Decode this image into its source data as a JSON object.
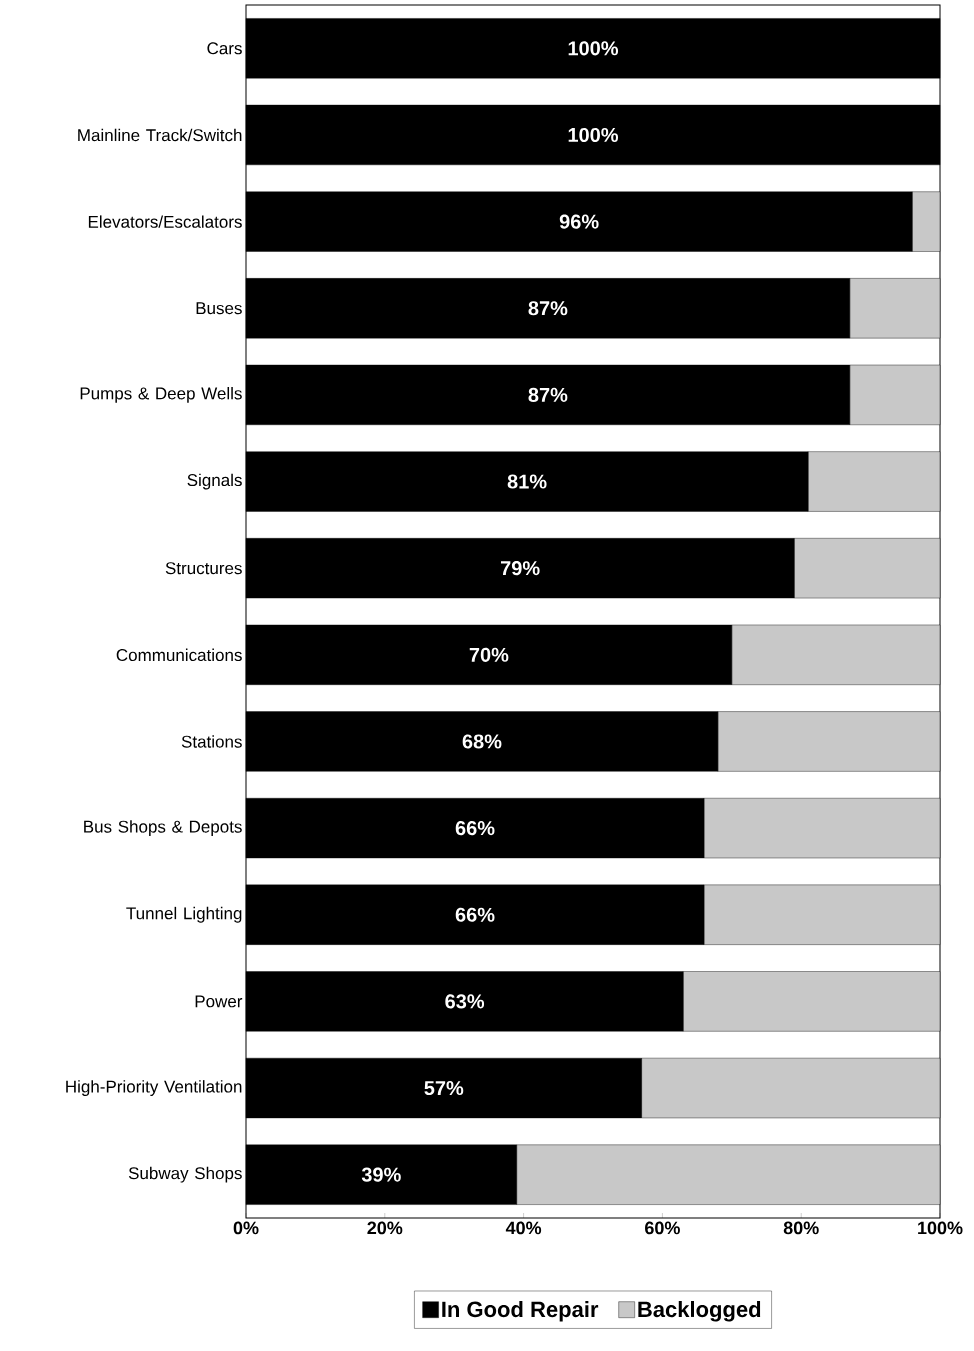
{
  "chart_data": {
    "type": "bar",
    "orientation": "horizontal",
    "stacked": true,
    "legend": "bottom",
    "categories": [
      "Cars",
      "Mainline Track/Switch",
      "Elevators/Escalators",
      "Buses",
      "Pumps & Deep Wells",
      "Signals",
      "Structures",
      "Communications",
      "Stations",
      "Bus Shops & Depots",
      "Tunnel Lighting",
      "Power",
      "High-Priority Ventilation",
      "Subway Shops"
    ],
    "series": [
      {
        "name": "In Good Repair",
        "color": "#000000",
        "values": [
          100,
          100,
          96,
          87,
          87,
          81,
          79,
          70,
          68,
          66,
          66,
          63,
          57,
          39
        ],
        "value_labels": [
          "100%",
          "100%",
          "96%",
          "87%",
          "87%",
          "81%",
          "79%",
          "70%",
          "68%",
          "66%",
          "66%",
          "63%",
          "57%",
          "39%"
        ]
      },
      {
        "name": "Backlogged",
        "color": "#c8c8c8",
        "values": [
          0,
          0,
          4,
          13,
          13,
          19,
          21,
          30,
          32,
          34,
          34,
          37,
          43,
          61
        ]
      }
    ],
    "xlim": [
      0,
      100
    ],
    "xticks": [
      {
        "value": 0,
        "label": "0%"
      },
      {
        "value": 20,
        "label": "20%"
      },
      {
        "value": 40,
        "label": "40%"
      },
      {
        "value": 60,
        "label": "60%"
      },
      {
        "value": 80,
        "label": "80%"
      },
      {
        "value": 100,
        "label": "100%"
      }
    ]
  }
}
